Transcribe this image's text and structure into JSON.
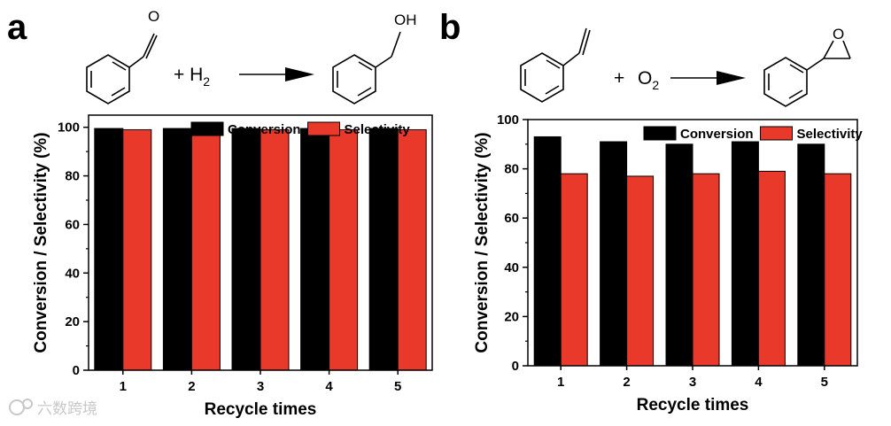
{
  "colors": {
    "conversion": "#000000",
    "selectivity": "#e8392b"
  },
  "panels": {
    "a": {
      "letter": "a",
      "reaction": {
        "plus": "+ H",
        "sub": "2",
        "product_group": "OH",
        "reactant_group": "O"
      }
    },
    "b": {
      "letter": "b",
      "reaction": {
        "plus": "+",
        "reagent": "O",
        "sub": "2",
        "product_group": "O"
      }
    }
  },
  "watermark": "六数跨境",
  "chart_data": [
    {
      "type": "bar",
      "categories": [
        "1",
        "2",
        "3",
        "4",
        "5"
      ],
      "series": [
        {
          "name": "Conversion",
          "values": [
            99.5,
            99.5,
            99.5,
            99.5,
            99.5
          ]
        },
        {
          "name": "Selectivity",
          "values": [
            99,
            99,
            99,
            99,
            99
          ]
        }
      ],
      "xlabel": "Recycle times",
      "ylabel": "Conversion / Selectivity (%)",
      "ylim": [
        0,
        105
      ],
      "yticks": [
        "0",
        "20",
        "40",
        "60",
        "80",
        "100"
      ],
      "legend": "top-right"
    },
    {
      "type": "bar",
      "categories": [
        "1",
        "2",
        "3",
        "4",
        "5"
      ],
      "series": [
        {
          "name": "Conversion",
          "values": [
            93,
            91,
            90,
            91,
            90
          ]
        },
        {
          "name": "Selectivity",
          "values": [
            78,
            77,
            78,
            79,
            78
          ]
        }
      ],
      "xlabel": "Recycle times",
      "ylabel": "Conversion / Selectivity (%)",
      "ylim": [
        0,
        100
      ],
      "yticks": [
        "0",
        "20",
        "40",
        "60",
        "80",
        "100"
      ],
      "legend": "top-right"
    }
  ]
}
